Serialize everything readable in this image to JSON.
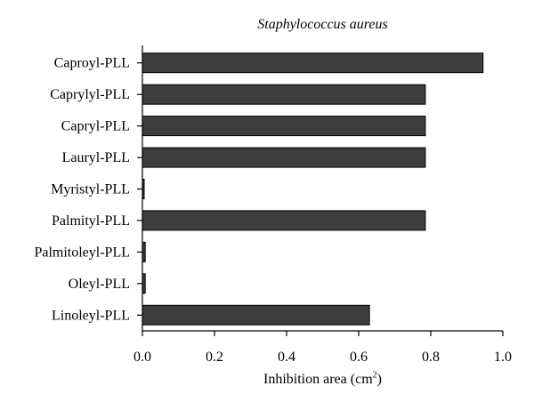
{
  "chart_data": {
    "type": "bar",
    "orientation": "horizontal",
    "title": "Staphylococcus aureus",
    "xlabel": "Inhibition area (cm",
    "xlabel_sup": "2",
    "xlabel_suffix": ")",
    "ylabel": "",
    "categories": [
      "Caproyl-PLL",
      "Caprylyl-PLL",
      "Capryl-PLL",
      "Lauryl-PLL",
      "Myristyl-PLL",
      "Palmityl-PLL",
      "Palmitoleyl-PLL",
      "Oleyl-PLL",
      "Linoleyl-PLL"
    ],
    "values": [
      0.945,
      0.785,
      0.785,
      0.785,
      0.005,
      0.785,
      0.008,
      0.008,
      0.63
    ],
    "xlim": [
      0.0,
      1.0
    ],
    "xticks": [
      "0.0",
      "0.2",
      "0.4",
      "0.6",
      "0.8",
      "1.0"
    ],
    "xtick_values": [
      0.0,
      0.2,
      0.4,
      0.6,
      0.8,
      1.0
    ],
    "bar_color": "#3d3d3d",
    "grid": false,
    "legend": "none"
  }
}
